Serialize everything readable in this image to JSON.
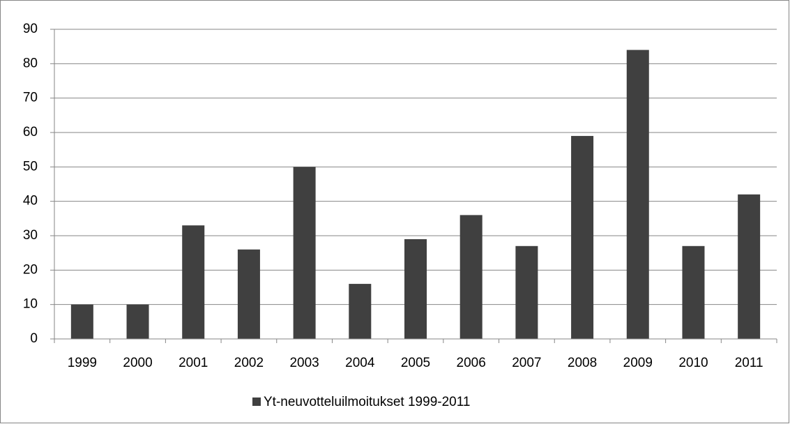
{
  "chart_data": {
    "type": "bar",
    "categories": [
      "1999",
      "2000",
      "2001",
      "2002",
      "2003",
      "2004",
      "2005",
      "2006",
      "2007",
      "2008",
      "2009",
      "2010",
      "2011"
    ],
    "series": [
      {
        "name": "Yt-neuvotteluilmoitukset 1999-2011",
        "color": "#404040",
        "values": [
          10,
          10,
          33,
          26,
          50,
          16,
          29,
          36,
          27,
          59,
          84,
          27,
          42
        ]
      }
    ],
    "ylim": [
      0,
      90
    ],
    "yticks": [
      0,
      10,
      20,
      30,
      40,
      50,
      60,
      70,
      80,
      90
    ],
    "grid": true,
    "legend": "bottom"
  }
}
